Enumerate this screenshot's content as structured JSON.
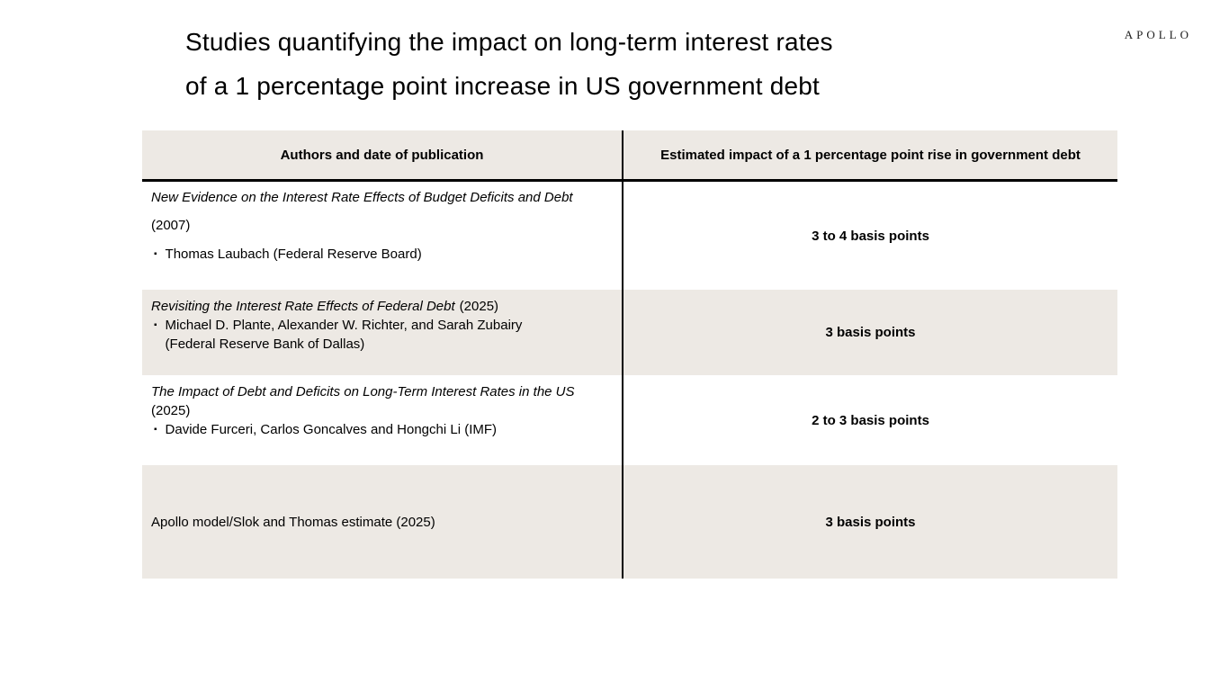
{
  "slide": {
    "title_line1": "Studies quantifying the impact on long-term interest rates",
    "title_line2": "of a 1 percentage point increase in US government debt",
    "logo_text": "APOLLO"
  },
  "colors": {
    "row_shade": "#EDE9E4",
    "rule": "#000000"
  },
  "table": {
    "bullet_glyph": "▪",
    "col1_header": "Authors and date of publication",
    "col2_header": "Estimated impact of a 1 percentage point rise in government debt",
    "rows": [
      {
        "study_title": "New Evidence on the Interest Rate Effects of Budget Deficits and Debt",
        "year": "(2007)",
        "authors": "Thomas Laubach (Federal Reserve Board)",
        "impact": "3 to 4 basis points"
      },
      {
        "study_title": "Revisiting the Interest Rate Effects of Federal Debt",
        "year": "(2025)",
        "authors": "Michael D. Plante, Alexander W. Richter, and Sarah Zubairy (Federal Reserve Bank of Dallas)",
        "impact": "3 basis points"
      },
      {
        "study_title": "The Impact of Debt and Deficits on Long-Term Interest Rates in the US",
        "year": "(2025)",
        "authors": "Davide Furceri, Carlos Goncalves and Hongchi Li (IMF)",
        "impact": "2 to 3 basis points"
      },
      {
        "study_title": "Apollo model/Slok and Thomas estimate (2025)",
        "impact": "3 basis points"
      }
    ]
  }
}
